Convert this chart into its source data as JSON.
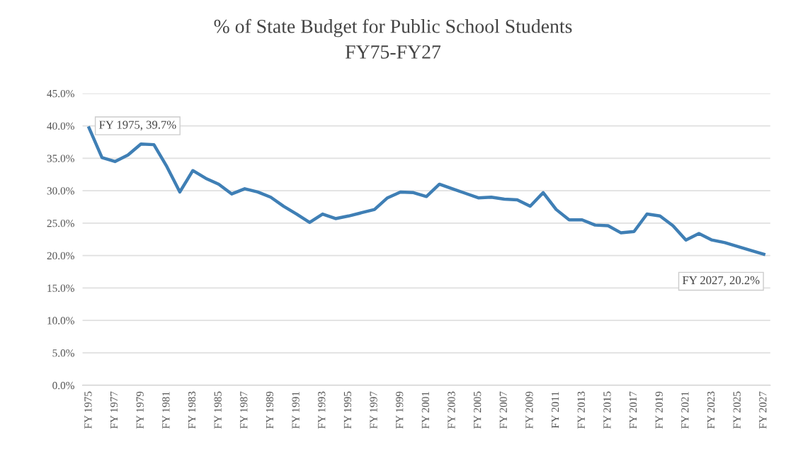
{
  "chart_data": {
    "type": "line",
    "title": "% of State Budget for Public School Students",
    "subtitle": "FY75-FY27",
    "categories": [
      "FY 1975",
      null,
      "FY 1977",
      null,
      "FY 1979",
      null,
      "FY 1981",
      null,
      "FY 1983",
      null,
      "FY 1985",
      null,
      "FY 1987",
      null,
      "FY 1989",
      null,
      "FY 1991",
      null,
      "FY 1993",
      null,
      "FY 1995",
      null,
      "FY 1997",
      null,
      "FY 1999",
      null,
      "FY 2001",
      null,
      "FY 2003",
      null,
      "FY 2005",
      null,
      "FY 2007",
      null,
      "FY 2009",
      null,
      "FY 2011",
      null,
      "FY 2013",
      null,
      "FY 2015",
      null,
      "FY 2017",
      null,
      "FY 2019",
      null,
      "FY 2021",
      null,
      "FY 2023",
      null,
      "FY 2025",
      null,
      "FY 2027"
    ],
    "series": [
      {
        "color": "#3f7fb5",
        "values": [
          39.7,
          35.1,
          34.5,
          35.5,
          37.2,
          37.1,
          33.7,
          29.8,
          33.1,
          31.9,
          31.0,
          29.5,
          30.3,
          29.8,
          29.0,
          27.6,
          26.4,
          25.1,
          26.4,
          25.7,
          26.1,
          26.6,
          27.1,
          28.9,
          29.8,
          29.7,
          29.1,
          31.0,
          30.3,
          29.6,
          28.9,
          29.0,
          28.7,
          28.6,
          27.6,
          29.7,
          27.1,
          25.5,
          25.5,
          24.7,
          24.6,
          23.5,
          23.7,
          26.4,
          26.1,
          24.6,
          22.4,
          23.4,
          22.4,
          22.0,
          21.4,
          20.8,
          20.2
        ]
      }
    ],
    "ylim": [
      0,
      45
    ],
    "yticks": [
      {
        "value": 0,
        "label": "0.0%"
      },
      {
        "value": 5,
        "label": "5.0%"
      },
      {
        "value": 10,
        "label": "10.0%"
      },
      {
        "value": 15,
        "label": "15.0%"
      },
      {
        "value": 20,
        "label": "20.0%"
      },
      {
        "value": 25,
        "label": "25.0%"
      },
      {
        "value": 30,
        "label": "30.0%"
      },
      {
        "value": 35,
        "label": "35.0%"
      },
      {
        "value": 40,
        "label": "40.0%"
      },
      {
        "value": 45,
        "label": "45.0%"
      }
    ],
    "annotations": [
      {
        "text": "FY 1975, 39.7%",
        "x": "FY 1975",
        "y": 39.7
      },
      {
        "text": "FY 2027, 20.2%",
        "x": "FY 2027",
        "y": 20.2
      }
    ],
    "grid": "y",
    "marker": "none",
    "line_style": "solid"
  }
}
